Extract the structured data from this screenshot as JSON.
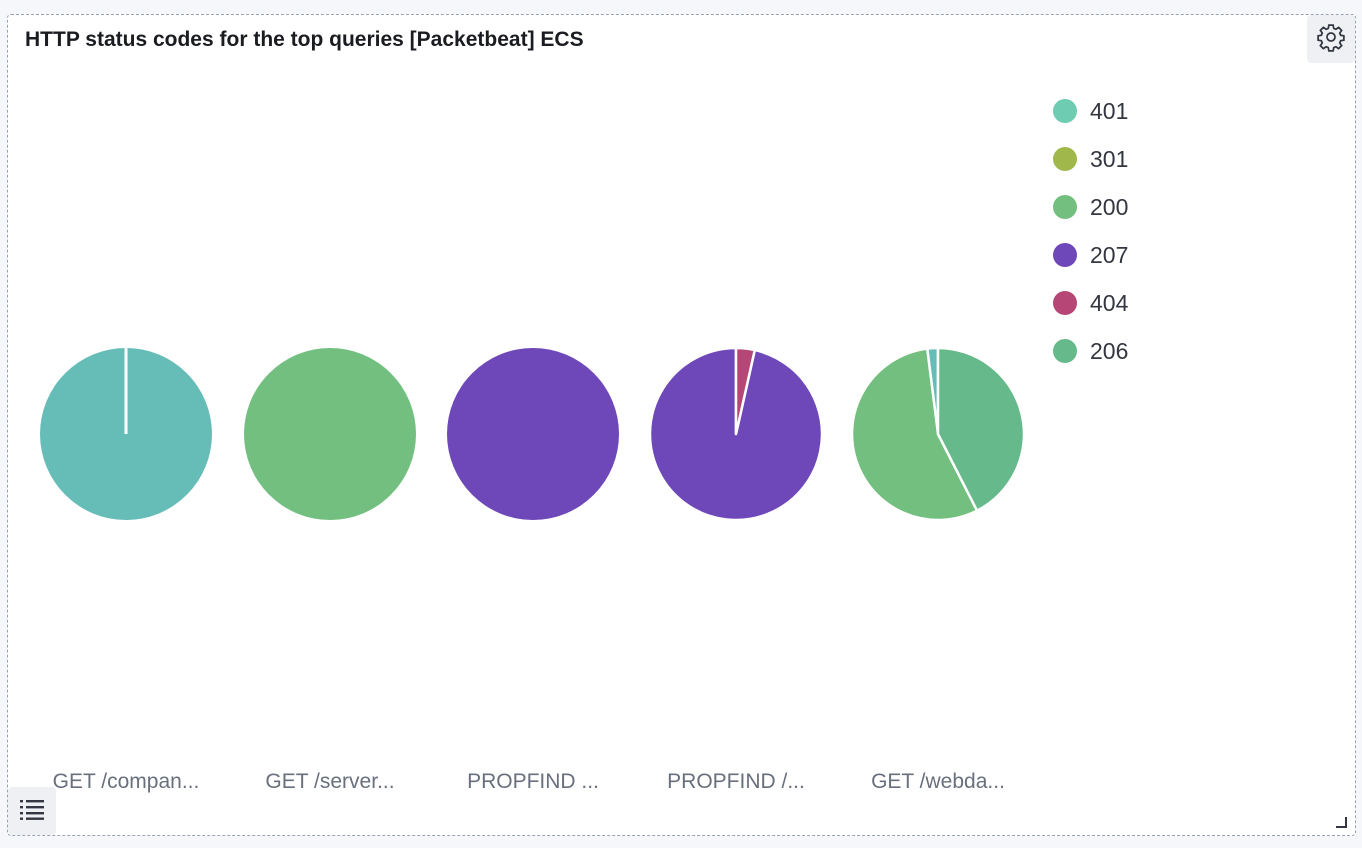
{
  "panel": {
    "title": "HTTP status codes for the top queries [Packetbeat] ECS",
    "settings_icon": "gear-icon",
    "legend_toggle_icon": "list-icon",
    "resize_icon": "resize-corner-icon"
  },
  "legend": {
    "items": [
      {
        "label": "401",
        "color": "#6dccb1"
      },
      {
        "label": "301",
        "color": "#a0b84b"
      },
      {
        "label": "200",
        "color": "#72bf7f"
      },
      {
        "label": "207",
        "color": "#6e47b8"
      },
      {
        "label": "404",
        "color": "#b64675"
      },
      {
        "label": "206",
        "color": "#65b98a"
      }
    ]
  },
  "chart_data": {
    "type": "pie",
    "title": "HTTP status codes for the top queries [Packetbeat] ECS",
    "legend_position": "right",
    "series_names": [
      "401",
      "301",
      "200",
      "207",
      "404",
      "206"
    ],
    "pies": [
      {
        "label": "GET /compan...",
        "slices": [
          {
            "name": "401",
            "value": 100,
            "color": "#66bdb8"
          }
        ]
      },
      {
        "label": "GET /server...",
        "slices": [
          {
            "name": "200",
            "value": 100,
            "color": "#72bf7f"
          }
        ]
      },
      {
        "label": "PROPFIND ...",
        "slices": [
          {
            "name": "207",
            "value": 100,
            "color": "#6e47b8"
          }
        ]
      },
      {
        "label": "PROPFIND /...",
        "slices": [
          {
            "name": "207",
            "value": 96.5,
            "color": "#6e47b8"
          },
          {
            "name": "404",
            "value": 3.5,
            "color": "#b64675"
          }
        ]
      },
      {
        "label": "GET /webda...",
        "slices": [
          {
            "name": "401",
            "value": 2,
            "color": "#66bdb8"
          },
          {
            "name": "200",
            "value": 55.5,
            "color": "#72bf7f"
          },
          {
            "name": "206",
            "value": 42.5,
            "color": "#65b98a"
          }
        ]
      }
    ]
  }
}
